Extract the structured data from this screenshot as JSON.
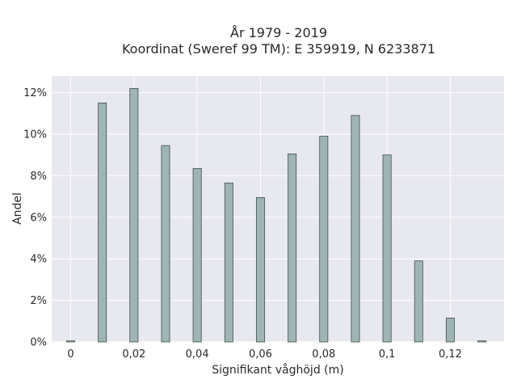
{
  "chart_data": {
    "type": "bar",
    "title_lines": [
      "År 1979 - 2019",
      "Koordinat (Sweref 99 TM): E 359919, N 6233871"
    ],
    "xlabel": "Signifikant våghöjd (m)",
    "ylabel": "Andel",
    "x": [
      0,
      0.01,
      0.02,
      0.03,
      0.04,
      0.05,
      0.06,
      0.07,
      0.08,
      0.09,
      0.1,
      0.11,
      0.12,
      0.13
    ],
    "values": [
      0.05,
      11.5,
      12.2,
      9.45,
      8.35,
      7.65,
      6.95,
      9.05,
      9.9,
      10.9,
      9.0,
      3.9,
      1.15,
      0.05
    ],
    "xlim": [
      -0.006,
      0.137
    ],
    "ylim": [
      0,
      12.8
    ],
    "x_ticks": [
      0,
      0.02,
      0.04,
      0.06,
      0.08,
      0.1,
      0.12
    ],
    "x_tick_labels": [
      "0",
      "0,02",
      "0,04",
      "0,06",
      "0,08",
      "0,1",
      "0,12"
    ],
    "y_ticks": [
      0,
      2,
      4,
      6,
      8,
      10,
      12
    ],
    "y_tick_labels": [
      "0%",
      "2%",
      "4%",
      "6%",
      "8%",
      "10%",
      "12%"
    ],
    "grid": true,
    "colors": {
      "plot_bg": "#e8e8f0",
      "bar": "#9fb4b4",
      "bar_edge": "#3f4f4f",
      "grid": "#ffffff"
    }
  }
}
